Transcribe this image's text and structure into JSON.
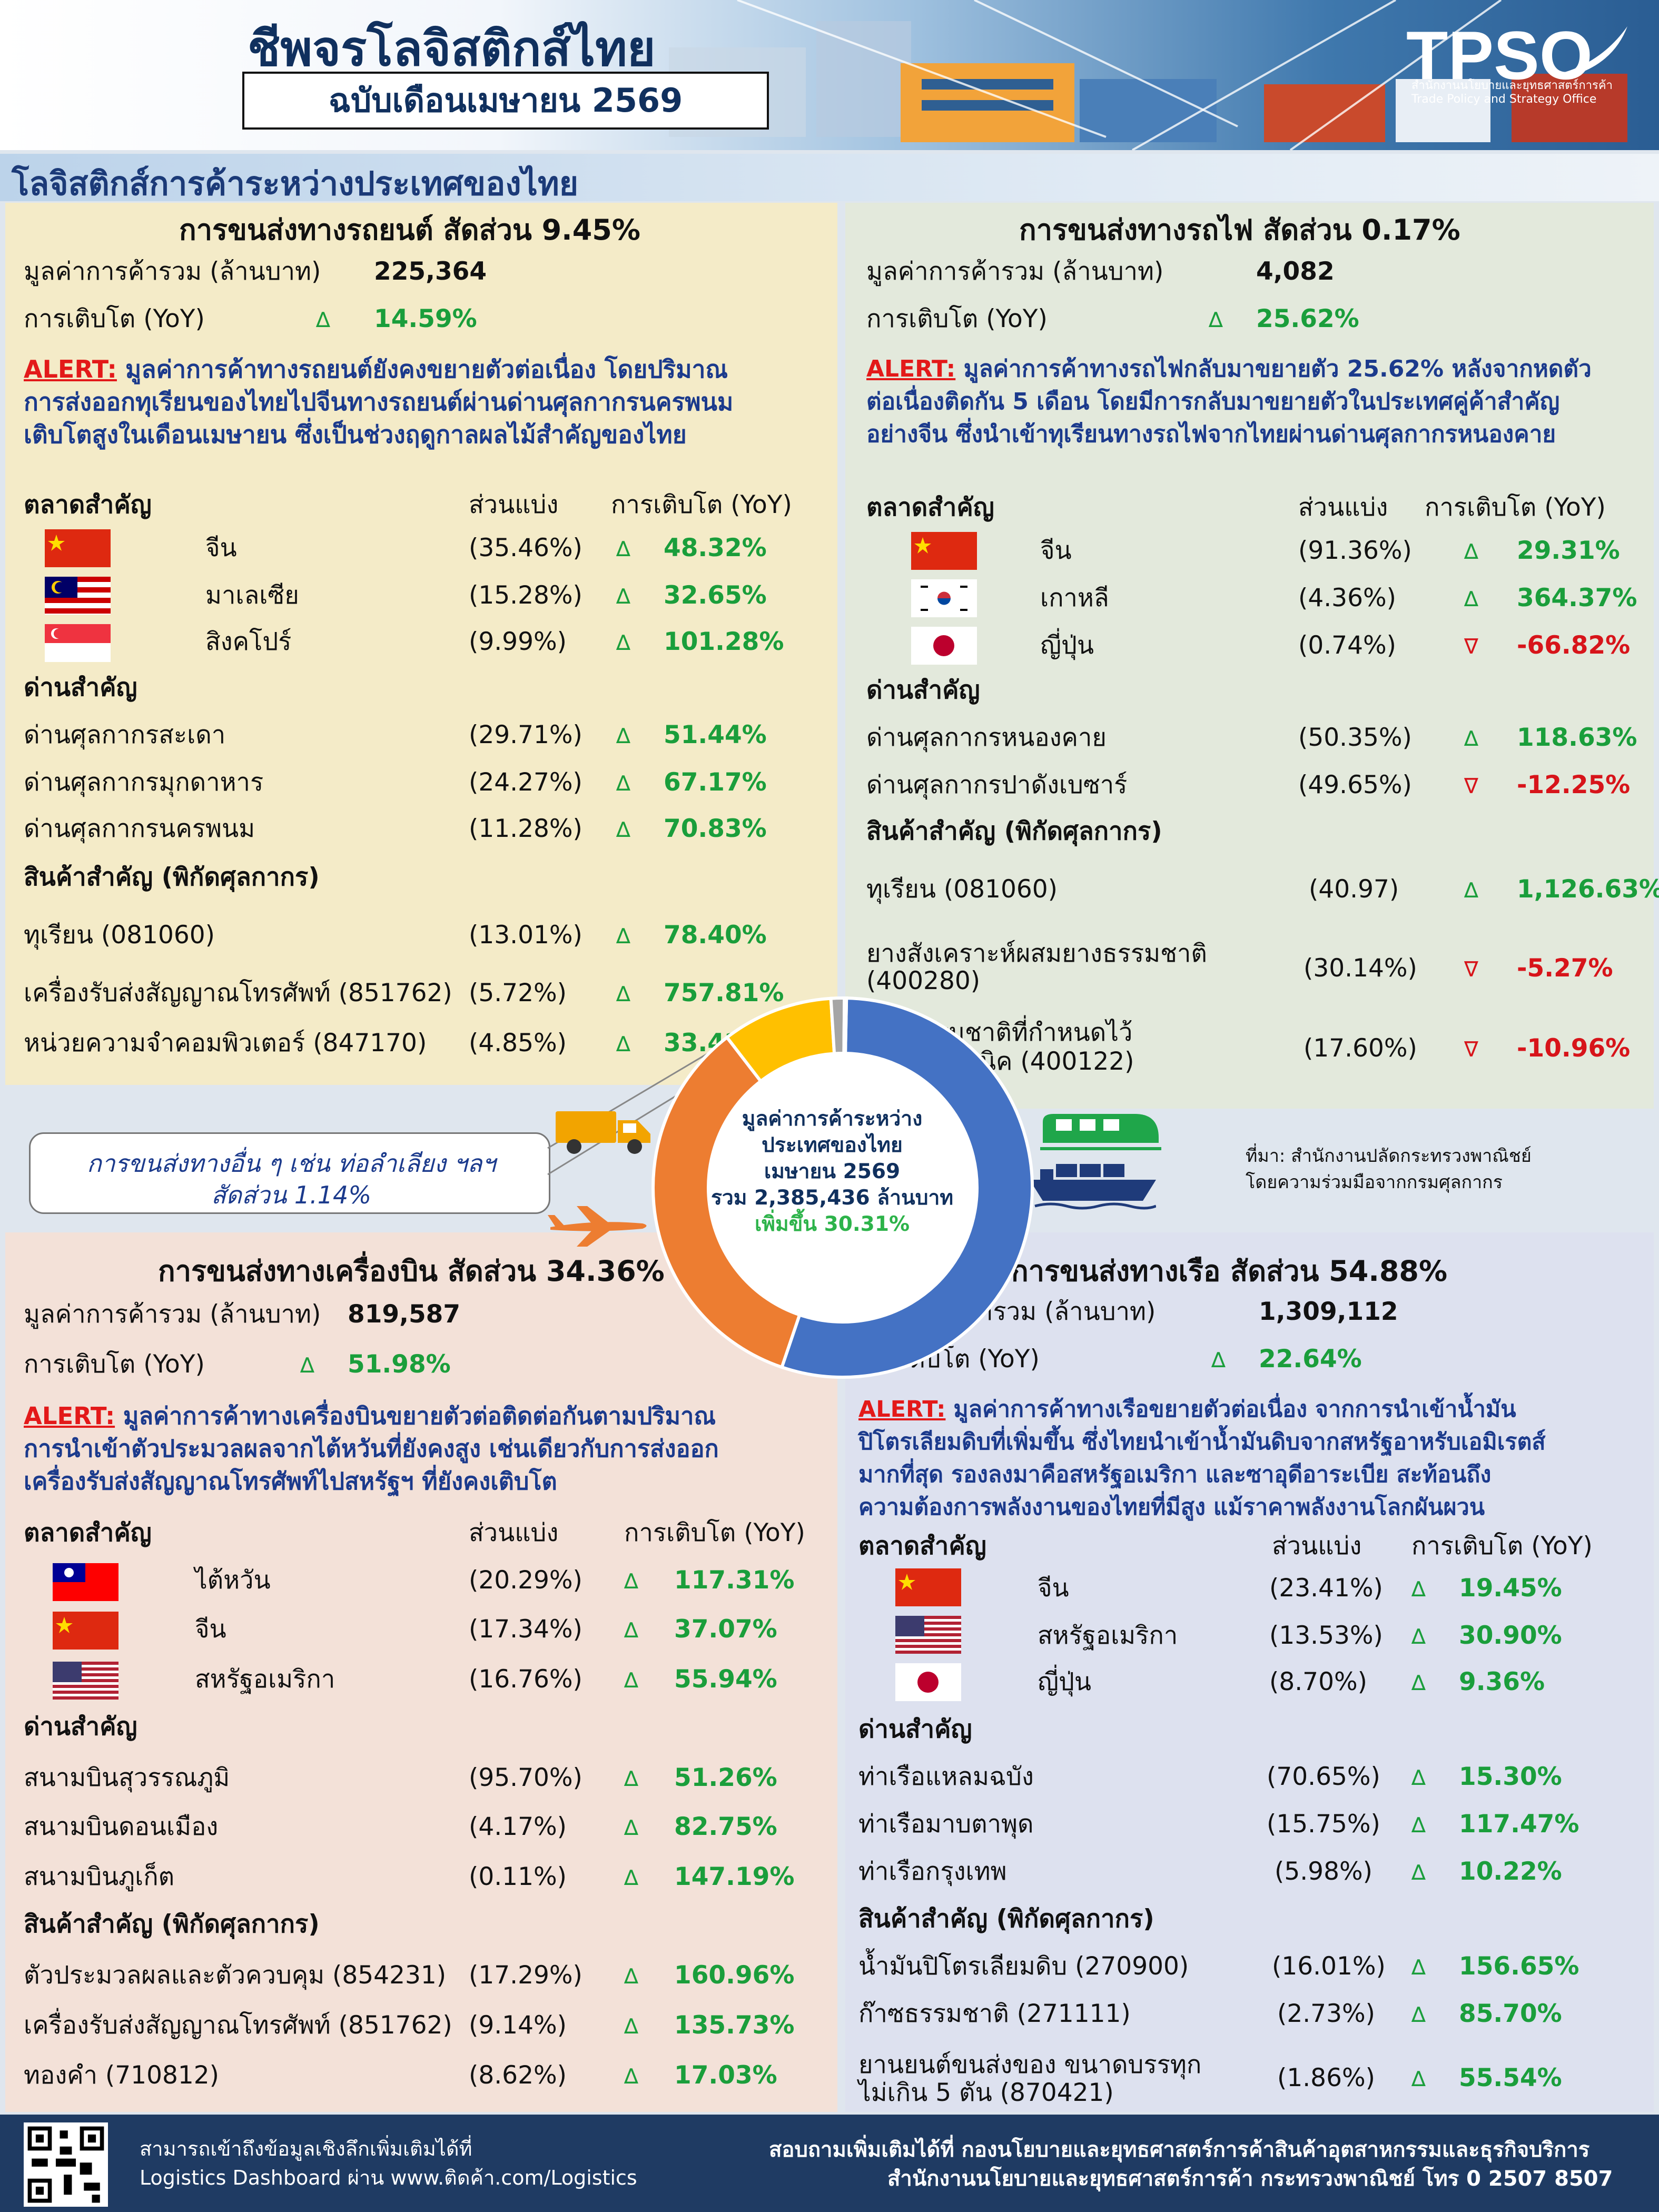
{
  "header": {
    "title": "ชีพจรโลจิสติกส์ไทย",
    "subtitle": "ฉบับเดือนเมษายน 2569",
    "logo_text": "TPSO",
    "logo_sub1": "สำนักงานนโยบายและยุทธศาสตร์การค้า",
    "logo_sub2": "Trade Policy and Strategy Office"
  },
  "section_title": "โลจิสติกส์การค้าระหว่างประเทศของไทย",
  "labels": {
    "trade_value": "มูลค่าการค้ารวม (ล้านบาท)",
    "growth": "การเติบโต (YoY)",
    "alert": "ALERT:",
    "markets": "ตลาดสำคัญ",
    "share": "ส่วนแบ่ง",
    "growth_col": "การเติบโต (YoY)",
    "checkpoints": "ด่านสำคัญ",
    "products": "สินค้าสำคัญ (พิกัดศุลกากร)",
    "up": "∆",
    "down": "∇"
  },
  "road": {
    "title": "การขนส่งทางรถยนต์ สัดส่วน 9.45%",
    "value": "225,364",
    "growth": "14.59%",
    "alert_lines": [
      "มูลค่าการค้าทางรถยนต์ยังคงขยายตัวต่อเนื่อง โดยปริมาณ",
      "การส่งออกทุเรียนของไทยไปจีนทางรถยนต์ผ่านด่านศุลกากรนครพนม",
      "เติบโตสูงในเดือนเมษายน ซึ่งเป็นช่วงฤดูกาลผลไม้สำคัญของไทย"
    ],
    "markets": [
      {
        "name": "จีน",
        "share": "(35.46%)",
        "growth": "48.32%"
      },
      {
        "name": "มาเลเซีย",
        "share": "(15.28%)",
        "growth": "32.65%"
      },
      {
        "name": "สิงคโปร์",
        "share": "(9.99%)",
        "growth": "101.28%"
      }
    ],
    "checkpoints": [
      {
        "name": "ด่านศุลกากรสะเดา",
        "share": "(29.71%)",
        "growth": "51.44%"
      },
      {
        "name": "ด่านศุลกากรมุกดาหาร",
        "share": "(24.27%)",
        "growth": "67.17%"
      },
      {
        "name": "ด่านศุลกากรนครพนม",
        "share": "(11.28%)",
        "growth": "70.83%"
      }
    ],
    "products": [
      {
        "name": "ทุเรียน (081060)",
        "share": "(13.01%)",
        "growth": "78.40%"
      },
      {
        "name": "เครื่องรับส่งสัญญาณโทรศัพท์ (851762)",
        "share": "(5.72%)",
        "growth": "757.81%"
      },
      {
        "name": "หน่วยความจำคอมพิวเตอร์ (847170)",
        "share": "(4.85%)",
        "growth": "33.42%"
      }
    ]
  },
  "rail": {
    "title": "การขนส่งทางรถไฟ สัดส่วน 0.17%",
    "value": "4,082",
    "growth": "25.62%",
    "alert_lines": [
      "มูลค่าการค้าทางรถไฟกลับมาขยายตัว 25.62% หลังจากหดตัว",
      "ต่อเนื่องติดกัน 5 เดือน โดยมีการกลับมาขยายตัวในประเทศคู่ค้าสำคัญ",
      "อย่างจีน ซึ่งนำเข้าทุเรียนทางรถไฟจากไทยผ่านด่านศุลกากรหนองคาย"
    ],
    "markets": [
      {
        "name": "จีน",
        "share": "(91.36%)",
        "growth": "29.31%"
      },
      {
        "name": "เกาหลี",
        "share": "(4.36%)",
        "growth": "364.37%"
      },
      {
        "name": "ญี่ปุ่น",
        "share": "(0.74%)",
        "growth": "-66.82%"
      }
    ],
    "checkpoints": [
      {
        "name": "ด่านศุลกากรหนองคาย",
        "share": "(50.35%)",
        "growth": "118.63%"
      },
      {
        "name": "ด่านศุลกากรปาดังเบซาร์",
        "share": "(49.65%)",
        "growth": "-12.25%"
      }
    ],
    "products": [
      {
        "name": "ทุเรียน (081060)",
        "share": "(40.97)",
        "growth": "1,126.63%"
      },
      {
        "name1": "ยางสังเคราะห์ผสมยางธรรมชาติ",
        "name2": "(400280)",
        "share": "(30.14%)",
        "growth": "-5.27%"
      },
      {
        "name1": "ยางธรรมชาติที่กำหนดไว้",
        "name2": "ในทางเทคนิค (400122)",
        "share": "(17.60%)",
        "growth": "-10.96%"
      }
    ]
  },
  "air": {
    "title": "การขนส่งทางเครื่องบิน สัดส่วน 34.36%",
    "value": "819,587",
    "growth": "51.98%",
    "alert_lines": [
      "มูลค่าการค้าทางเครื่องบินขยายตัวต่อติดต่อกันตามปริมาณ",
      "การนำเข้าตัวประมวลผลจากไต้หวันที่ยังคงสูง เช่นเดียวกับการส่งออก",
      "เครื่องรับส่งสัญญาณโทรศัพท์ไปสหรัฐฯ ที่ยังคงเติบโต"
    ],
    "markets": [
      {
        "name": "ไต้หวัน",
        "share": "(20.29%)",
        "growth": "117.31%"
      },
      {
        "name": "จีน",
        "share": "(17.34%)",
        "growth": "37.07%"
      },
      {
        "name": "สหรัฐอเมริกา",
        "share": "(16.76%)",
        "growth": "55.94%"
      }
    ],
    "checkpoints": [
      {
        "name": "สนามบินสุวรรณภูมิ",
        "share": "(95.70%)",
        "growth": "51.26%"
      },
      {
        "name": "สนามบินดอนเมือง",
        "share": "(4.17%)",
        "growth": "82.75%"
      },
      {
        "name": "สนามบินภูเก็ต",
        "share": "(0.11%)",
        "growth": "147.19%"
      }
    ],
    "products": [
      {
        "name": "ตัวประมวลผลและตัวควบคุม (854231)",
        "share": "(17.29%)",
        "growth": "160.96%"
      },
      {
        "name": "เครื่องรับส่งสัญญาณโทรศัพท์ (851762)",
        "share": "(9.14%)",
        "growth": "135.73%"
      },
      {
        "name": "ทองคำ (710812)",
        "share": "(8.62%)",
        "growth": "17.03%"
      }
    ]
  },
  "sea": {
    "title": "การขนส่งทางเรือ สัดส่วน 54.88%",
    "value": "1,309,112",
    "growth": "22.64%",
    "alert_lines": [
      "มูลค่าการค้าทางเรือขยายตัวต่อเนื่อง จากการนำเข้าน้ำมัน",
      "ปิโตรเลียมดิบที่เพิ่มขึ้น ซึ่งไทยนำเข้าน้ำมันดิบจากสหรัฐอาหรับเอมิเรตส์",
      "มากที่สุด รองลงมาคือสหรัฐอเมริกา และซาอุดีอาระเบีย สะท้อนถึง",
      "ความต้องการพลังงานของไทยที่มีสูง แม้ราคาพลังงานโลกผันผวน"
    ],
    "markets": [
      {
        "name": "จีน",
        "share": "(23.41%)",
        "growth": "19.45%"
      },
      {
        "name": "สหรัฐอเมริกา",
        "share": "(13.53%)",
        "growth": "30.90%"
      },
      {
        "name": "ญี่ปุ่น",
        "share": "(8.70%)",
        "growth": "9.36%"
      }
    ],
    "checkpoints": [
      {
        "name": "ท่าเรือแหลมฉบัง",
        "share": "(70.65%)",
        "growth": "15.30%"
      },
      {
        "name": "ท่าเรือมาบตาพุด",
        "share": "(15.75%)",
        "growth": "117.47%"
      },
      {
        "name": "ท่าเรือกรุงเทพ",
        "share": "(5.98%)",
        "growth": "10.22%"
      }
    ],
    "products": [
      {
        "name": "น้ำมันปิโตรเลียมดิบ (270900)",
        "share": "(16.01%)",
        "growth": "156.65%"
      },
      {
        "name": "ก๊าซธรรมชาติ (271111)",
        "share": "(2.73%)",
        "growth": "85.70%"
      },
      {
        "name1": "ยานยนต์ขนส่งของ ขนาดบรรทุก",
        "name2": "ไม่เกิน 5 ตัน (870421)",
        "share": "(1.86%)",
        "growth": "55.54%"
      }
    ]
  },
  "other_note": {
    "line1": "การขนส่งทางอื่น ๆ เช่น ท่อลำเลียง ฯลฯ",
    "line2": "สัดส่วน 1.14%"
  },
  "center": {
    "line1": "มูลค่าการค้าระหว่าง",
    "line2": "ประเทศของไทย",
    "line3": "เมษายน 2569",
    "line4": "รวม 2,385,436 ล้านบาท",
    "line5": "เพิ่มขึ้น 30.31%"
  },
  "chart_data": {
    "type": "pie",
    "categories": [
      "การขนส่งทางเรือ",
      "การขนส่งทางเครื่องบิน",
      "การขนส่งทางรถยนต์",
      "การขนส่งทางอื่น ๆ",
      "การขนส่งทางรถไฟ"
    ],
    "values": [
      54.88,
      34.36,
      9.45,
      1.14,
      0.17
    ],
    "colors": [
      "#4472c4",
      "#ed7d31",
      "#ffc000",
      "#a5a5a5",
      "#70ad47"
    ]
  },
  "source": {
    "line1": "ที่มา: สำนักงานปลัดกระทรวงพาณิชย์",
    "line2": "โดยความร่วมมือจากกรมศุลกากร"
  },
  "footer": {
    "left1": "สามารถเข้าถึงข้อมูลเชิงลึกเพิ่มเติมได้ที่",
    "left2": "Logistics Dashboard ผ่าน www.ติดค้า.com/Logistics",
    "right1": "สอบถามเพิ่มเติมได้ที่ กองนโยบายและยุทธศาสตร์การค้าสินค้าอุตสาหกรรมและธุรกิจบริการ",
    "right2": "สำนักงานนโยบายและยุทธศาสตร์การค้า กระทรวงพาณิชย์ โทร 0 2507 8507"
  }
}
